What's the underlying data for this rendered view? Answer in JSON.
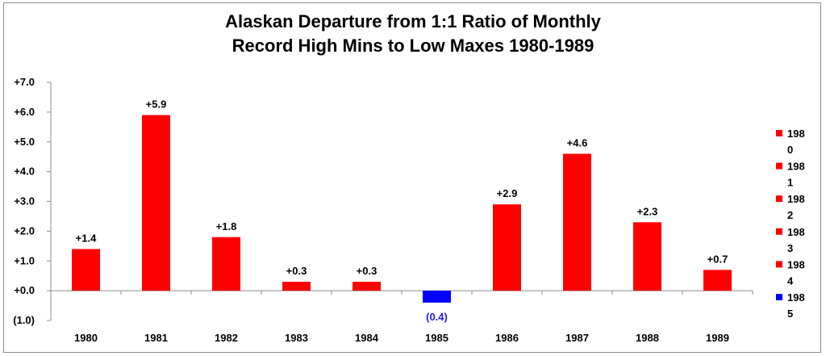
{
  "chart_data": {
    "type": "bar",
    "title_line1": "Alaskan Departure from 1:1 Ratio of Monthly",
    "title_line2": "Record High Mins to Low Maxes 1980-1989",
    "categories": [
      "1980",
      "1981",
      "1982",
      "1983",
      "1984",
      "1985",
      "1986",
      "1987",
      "1988",
      "1989"
    ],
    "values": [
      1.4,
      5.9,
      1.8,
      0.3,
      0.3,
      -0.4,
      2.9,
      4.6,
      2.3,
      0.7
    ],
    "data_labels": [
      "+1.4",
      "+5.9",
      "+1.8",
      "+0.3",
      "+0.3",
      "(0.4)",
      "+2.9",
      "+4.6",
      "+2.3",
      "+0.7"
    ],
    "y_ticks": [
      -1,
      0,
      1,
      2,
      3,
      4,
      5,
      6,
      7
    ],
    "y_tick_labels": [
      "(1.0)",
      "+0.0",
      "+1.0",
      "+2.0",
      "+3.0",
      "+4.0",
      "+5.0",
      "+6.0",
      "+7.0"
    ],
    "ylim": [
      -1,
      7
    ],
    "xlabel": "",
    "ylabel": "",
    "grid": false,
    "legend_placement": "right",
    "legend_entries": [
      {
        "label_top": "198",
        "label_bottom": "0"
      },
      {
        "label_top": "198",
        "label_bottom": "1"
      },
      {
        "label_top": "198",
        "label_bottom": "2"
      },
      {
        "label_top": "198",
        "label_bottom": "3"
      },
      {
        "label_top": "198",
        "label_bottom": "4"
      },
      {
        "label_top": "198",
        "label_bottom": "5"
      }
    ],
    "colors": {
      "positive": "#ff0000",
      "negative": "#0000ff",
      "negative_label": "#1a1aff",
      "axis": "#8c8c8c"
    }
  }
}
